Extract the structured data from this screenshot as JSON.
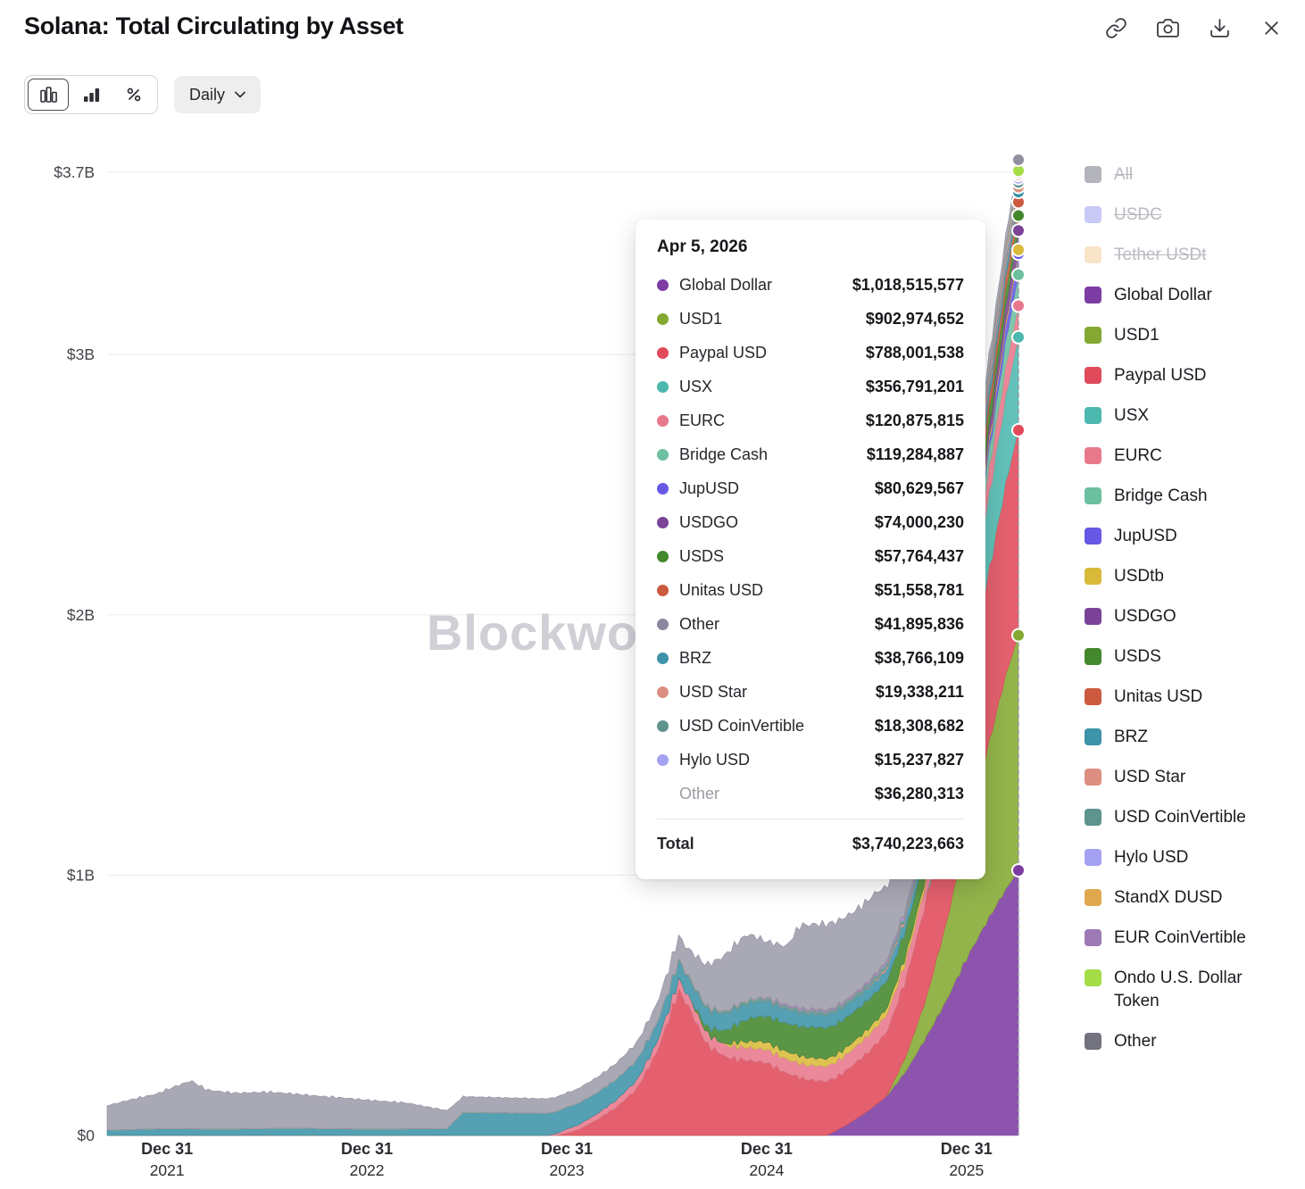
{
  "header": {
    "title": "Solana: Total Circulating by Asset",
    "actions": [
      {
        "icon": "link-icon"
      },
      {
        "icon": "camera-icon"
      },
      {
        "icon": "download-icon"
      },
      {
        "icon": "close-icon"
      }
    ]
  },
  "toolbar": {
    "chart_types": [
      {
        "icon": "stacked-bars-icon",
        "active": true
      },
      {
        "icon": "bars-icon",
        "active": false
      },
      {
        "icon": "percent-icon",
        "active": false
      }
    ],
    "period": {
      "label": "Daily",
      "icon": "chevron-down-icon"
    }
  },
  "watermark": "Blockworks",
  "tooltip": {
    "date": "Apr 5, 2026",
    "rows": [
      {
        "name": "Global Dollar",
        "value": "$1,018,515,577",
        "color": "#7d3ca3"
      },
      {
        "name": "USD1",
        "value": "$902,974,652",
        "color": "#84a832"
      },
      {
        "name": "Paypal USD",
        "value": "$788,001,538",
        "color": "#e04a5a"
      },
      {
        "name": "USX",
        "value": "$356,791,201",
        "color": "#4cb8ae"
      },
      {
        "name": "EURC",
        "value": "$120,875,815",
        "color": "#e8798c"
      },
      {
        "name": "Bridge Cash",
        "value": "$119,284,887",
        "color": "#6cbf9f"
      },
      {
        "name": "JupUSD",
        "value": "$80,629,567",
        "color": "#6759e6"
      },
      {
        "name": "USDGO",
        "value": "$74,000,230",
        "color": "#7b4397"
      },
      {
        "name": "USDS",
        "value": "$57,764,437",
        "color": "#44882e"
      },
      {
        "name": "Unitas USD",
        "value": "$51,558,781",
        "color": "#cc5a3e"
      },
      {
        "name": "Other",
        "value": "$41,895,836",
        "color": "#8c87a0"
      },
      {
        "name": "BRZ",
        "value": "$38,766,109",
        "color": "#3d93a8"
      },
      {
        "name": "USD Star",
        "value": "$19,338,211",
        "color": "#dc8f80"
      },
      {
        "name": "USD CoinVertible",
        "value": "$18,308,682",
        "color": "#5f938e"
      },
      {
        "name": "Hylo USD",
        "value": "$15,237,827",
        "color": "#a5a1f2"
      }
    ],
    "other_row": {
      "name": "Other",
      "value": "$36,280,313"
    },
    "total_row": {
      "name": "Total",
      "value": "$3,740,223,663"
    }
  },
  "legend": {
    "items": [
      {
        "label": "All",
        "color": "#b4b4bc",
        "disabled": true
      },
      {
        "label": "USDC",
        "color": "#c9c9f5",
        "disabled": true
      },
      {
        "label": "Tether USDt",
        "color": "#f8e4c9",
        "disabled": true
      },
      {
        "label": "Global Dollar",
        "color": "#7d3ca3",
        "disabled": false
      },
      {
        "label": "USD1",
        "color": "#84a832",
        "disabled": false
      },
      {
        "label": "Paypal USD",
        "color": "#e04a5a",
        "disabled": false
      },
      {
        "label": "USX",
        "color": "#4cb8ae",
        "disabled": false
      },
      {
        "label": "EURC",
        "color": "#e8798c",
        "disabled": false
      },
      {
        "label": "Bridge Cash",
        "color": "#6cbf9f",
        "disabled": false
      },
      {
        "label": "JupUSD",
        "color": "#6759e6",
        "disabled": false
      },
      {
        "label": "USDtb",
        "color": "#d9b93a",
        "disabled": false
      },
      {
        "label": "USDGO",
        "color": "#7b4397",
        "disabled": false
      },
      {
        "label": "USDS",
        "color": "#44882e",
        "disabled": false
      },
      {
        "label": "Unitas USD",
        "color": "#cc5a3e",
        "disabled": false
      },
      {
        "label": "BRZ",
        "color": "#3d93a8",
        "disabled": false
      },
      {
        "label": "USD Star",
        "color": "#dc8f80",
        "disabled": false
      },
      {
        "label": "USD CoinVertible",
        "color": "#5f938e",
        "disabled": false
      },
      {
        "label": "Hylo USD",
        "color": "#a5a1f2",
        "disabled": false
      },
      {
        "label": "StandX DUSD",
        "color": "#e0a84e",
        "disabled": false
      },
      {
        "label": "EUR CoinVertible",
        "color": "#9d7ab5",
        "disabled": false
      },
      {
        "label": "Ondo U.S. Dollar Token",
        "color": "#a4dd46",
        "disabled": false
      },
      {
        "label": "Other",
        "color": "#73737f",
        "disabled": false
      }
    ]
  },
  "chart_data": {
    "type": "area",
    "stacked": true,
    "title": "Solana: Total Circulating by Asset",
    "unit": "USD millions",
    "grid": true,
    "legend_position": "right",
    "x_domain": [
      2021.7,
      2026.26
    ],
    "ylim": [
      0,
      3700
    ],
    "cursor_date": "Apr 5, 2026",
    "y_ticks": [
      {
        "label": "$3.7B",
        "value": 3700
      },
      {
        "label": "$3B",
        "value": 3000
      },
      {
        "label": "$2B",
        "value": 2000
      },
      {
        "label": "$1B",
        "value": 1000
      },
      {
        "label": "$0",
        "value": 0
      }
    ],
    "x_ticks": [
      {
        "label": "Dec 31",
        "sublabel": "2021",
        "t": 2022.0
      },
      {
        "label": "Dec 31",
        "sublabel": "2022",
        "t": 2023.0
      },
      {
        "label": "Dec 31",
        "sublabel": "2023",
        "t": 2024.0
      },
      {
        "label": "Dec 31",
        "sublabel": "2024",
        "t": 2025.0
      },
      {
        "label": "Dec 31",
        "sublabel": "2025",
        "t": 2026.0
      }
    ],
    "series": [
      {
        "name": "Global Dollar",
        "color": "#7d3ca3",
        "end_value": 1018.5,
        "points": [
          [
            2025.3,
            0
          ],
          [
            2025.4,
            40
          ],
          [
            2025.5,
            90
          ],
          [
            2025.6,
            150
          ],
          [
            2025.7,
            250
          ],
          [
            2025.8,
            380
          ],
          [
            2025.9,
            520
          ],
          [
            2026.0,
            680
          ],
          [
            2026.1,
            820
          ],
          [
            2026.2,
            950
          ],
          [
            2026.26,
            1018.5
          ]
        ]
      },
      {
        "name": "USD1",
        "color": "#84a832",
        "end_value": 903.0,
        "points": [
          [
            2025.6,
            0
          ],
          [
            2025.7,
            60
          ],
          [
            2025.8,
            150
          ],
          [
            2025.9,
            300
          ],
          [
            2026.0,
            480
          ],
          [
            2026.1,
            650
          ],
          [
            2026.2,
            830
          ],
          [
            2026.26,
            903
          ]
        ]
      },
      {
        "name": "Paypal USD",
        "color": "#e04a5a",
        "end_value": 788.0,
        "points": [
          [
            2023.95,
            0
          ],
          [
            2024.05,
            20
          ],
          [
            2024.15,
            60
          ],
          [
            2024.25,
            110
          ],
          [
            2024.35,
            180
          ],
          [
            2024.45,
            320
          ],
          [
            2024.52,
            470
          ],
          [
            2024.56,
            560
          ],
          [
            2024.62,
            480
          ],
          [
            2024.7,
            350
          ],
          [
            2024.8,
            300
          ],
          [
            2024.9,
            290
          ],
          [
            2025.0,
            280
          ],
          [
            2025.1,
            240
          ],
          [
            2025.2,
            215
          ],
          [
            2025.35,
            205
          ],
          [
            2025.5,
            225
          ],
          [
            2025.6,
            245
          ],
          [
            2025.7,
            300
          ],
          [
            2025.8,
            380
          ],
          [
            2025.9,
            470
          ],
          [
            2026.0,
            560
          ],
          [
            2026.1,
            650
          ],
          [
            2026.2,
            740
          ],
          [
            2026.26,
            788
          ]
        ]
      },
      {
        "name": "USX",
        "color": "#4cb8ae",
        "end_value": 356.8,
        "points": [
          [
            2025.8,
            0
          ],
          [
            2025.87,
            50
          ],
          [
            2025.93,
            120
          ],
          [
            2026.0,
            200
          ],
          [
            2026.1,
            280
          ],
          [
            2026.2,
            335
          ],
          [
            2026.26,
            356.8
          ]
        ]
      },
      {
        "name": "EURC",
        "color": "#e8798c",
        "end_value": 120.9,
        "points": [
          [
            2023.9,
            0
          ],
          [
            2024.0,
            15
          ],
          [
            2024.3,
            30
          ],
          [
            2024.6,
            40
          ],
          [
            2025.0,
            50
          ],
          [
            2025.5,
            62
          ],
          [
            2025.8,
            72
          ],
          [
            2026.0,
            90
          ],
          [
            2026.26,
            120.9
          ]
        ]
      },
      {
        "name": "Bridge Cash",
        "color": "#6cbf9f",
        "end_value": 119.3,
        "points": [
          [
            2025.9,
            0
          ],
          [
            2026.0,
            30
          ],
          [
            2026.1,
            62
          ],
          [
            2026.2,
            98
          ],
          [
            2026.26,
            119.3
          ]
        ]
      },
      {
        "name": "JupUSD",
        "color": "#6759e6",
        "end_value": 80.6,
        "points": [
          [
            2026.02,
            0
          ],
          [
            2026.1,
            22
          ],
          [
            2026.2,
            58
          ],
          [
            2026.26,
            80.6
          ]
        ]
      },
      {
        "name": "USDtb",
        "color": "#d9b93a",
        "end_value": 15.0,
        "points": [
          [
            2024.78,
            0
          ],
          [
            2024.85,
            18
          ],
          [
            2024.95,
            28
          ],
          [
            2025.2,
            30
          ],
          [
            2025.5,
            26
          ],
          [
            2025.8,
            22
          ],
          [
            2026.0,
            20
          ],
          [
            2026.26,
            15
          ]
        ]
      },
      {
        "name": "USDGO",
        "color": "#7b4397",
        "end_value": 74.0,
        "points": [
          [
            2025.95,
            0
          ],
          [
            2026.05,
            25
          ],
          [
            2026.15,
            52
          ],
          [
            2026.26,
            74
          ]
        ]
      },
      {
        "name": "USDS",
        "color": "#44882e",
        "end_value": 57.8,
        "points": [
          [
            2024.62,
            0
          ],
          [
            2024.72,
            30
          ],
          [
            2024.82,
            60
          ],
          [
            2024.92,
            90
          ],
          [
            2025.0,
            100
          ],
          [
            2025.25,
            120
          ],
          [
            2025.5,
            112
          ],
          [
            2025.8,
            92
          ],
          [
            2026.0,
            72
          ],
          [
            2026.26,
            57.8
          ]
        ]
      },
      {
        "name": "Unitas USD",
        "color": "#cc5a3e",
        "end_value": 51.6,
        "points": [
          [
            2025.78,
            0
          ],
          [
            2025.9,
            20
          ],
          [
            2026.0,
            30
          ],
          [
            2026.1,
            42
          ],
          [
            2026.26,
            51.6
          ]
        ]
      },
      {
        "name": "BRZ",
        "color": "#3d93a8",
        "end_value": 38.8,
        "points": [
          [
            2021.7,
            20
          ],
          [
            2022.0,
            26
          ],
          [
            2022.3,
            24
          ],
          [
            2022.6,
            28
          ],
          [
            2023.0,
            24
          ],
          [
            2023.4,
            26
          ],
          [
            2023.48,
            88
          ],
          [
            2023.8,
            86
          ],
          [
            2024.0,
            84
          ],
          [
            2024.3,
            78
          ],
          [
            2024.6,
            70
          ],
          [
            2024.9,
            60
          ],
          [
            2025.2,
            50
          ],
          [
            2025.6,
            44
          ],
          [
            2026.0,
            40
          ],
          [
            2026.26,
            38.8
          ]
        ]
      },
      {
        "name": "USD Star",
        "color": "#dc8f80",
        "end_value": 19.3,
        "points": [
          [
            2025.45,
            0
          ],
          [
            2025.6,
            8
          ],
          [
            2025.8,
            12
          ],
          [
            2026.0,
            15
          ],
          [
            2026.26,
            19.3
          ]
        ]
      },
      {
        "name": "USD CoinVertible",
        "color": "#5f938e",
        "end_value": 18.3,
        "points": [
          [
            2024.5,
            0
          ],
          [
            2024.7,
            10
          ],
          [
            2025.0,
            12
          ],
          [
            2025.5,
            15
          ],
          [
            2026.26,
            18.3
          ]
        ]
      },
      {
        "name": "Hylo USD",
        "color": "#a5a1f2",
        "end_value": 15.2,
        "points": [
          [
            2025.5,
            0
          ],
          [
            2025.8,
            8
          ],
          [
            2026.0,
            12
          ],
          [
            2026.26,
            15.2
          ]
        ]
      },
      {
        "name": "StandX DUSD",
        "color": "#e0a84e",
        "end_value": 12.0,
        "points": [
          [
            2025.9,
            0
          ],
          [
            2026.0,
            8
          ],
          [
            2026.26,
            12
          ]
        ]
      },
      {
        "name": "EUR CoinVertible",
        "color": "#9d7ab5",
        "end_value": 9.0,
        "points": [
          [
            2024.9,
            0
          ],
          [
            2025.1,
            6
          ],
          [
            2026.26,
            9
          ]
        ]
      },
      {
        "name": "Ondo U.S. Dollar Token",
        "color": "#a4dd46",
        "end_value": 8.0,
        "points": [
          [
            2026.1,
            0
          ],
          [
            2026.26,
            8
          ]
        ]
      },
      {
        "name": "Other",
        "color": "#918fa0",
        "end_value": 42.0,
        "points": [
          [
            2021.7,
            95
          ],
          [
            2021.85,
            120
          ],
          [
            2021.95,
            135
          ],
          [
            2022.05,
            165
          ],
          [
            2022.12,
            185
          ],
          [
            2022.2,
            150
          ],
          [
            2022.35,
            138
          ],
          [
            2022.5,
            140
          ],
          [
            2022.7,
            128
          ],
          [
            2022.9,
            118
          ],
          [
            2023.0,
            112
          ],
          [
            2023.2,
            100
          ],
          [
            2023.45,
            62
          ],
          [
            2023.7,
            58
          ],
          [
            2024.0,
            55
          ],
          [
            2024.2,
            60
          ],
          [
            2024.4,
            70
          ],
          [
            2024.5,
            80
          ],
          [
            2024.6,
            100
          ],
          [
            2024.7,
            160
          ],
          [
            2024.8,
            220
          ],
          [
            2024.9,
            255
          ],
          [
            2025.0,
            215
          ],
          [
            2025.1,
            225
          ],
          [
            2025.17,
            320
          ],
          [
            2025.3,
            330
          ],
          [
            2025.45,
            315
          ],
          [
            2025.55,
            310
          ],
          [
            2025.65,
            260
          ],
          [
            2025.75,
            205
          ],
          [
            2025.85,
            150
          ],
          [
            2025.95,
            100
          ],
          [
            2026.05,
            70
          ],
          [
            2026.15,
            55
          ],
          [
            2026.26,
            42
          ]
        ]
      }
    ]
  }
}
